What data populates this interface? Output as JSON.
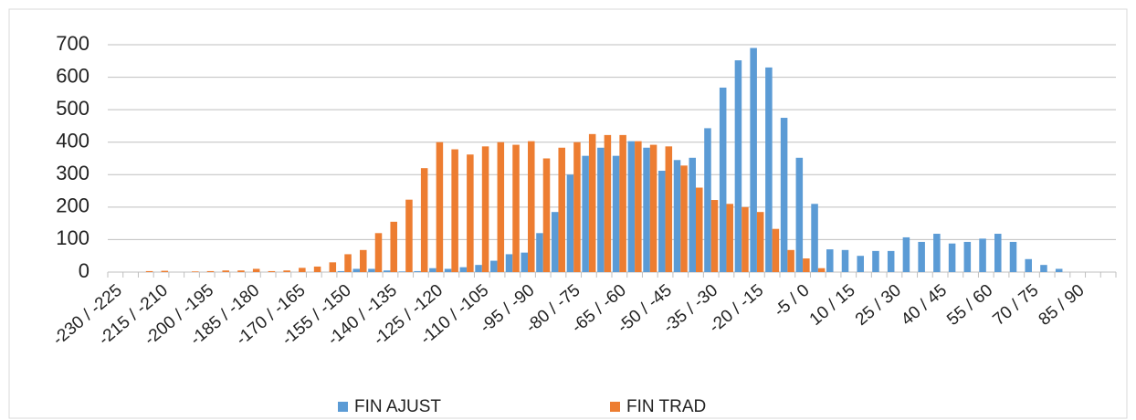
{
  "chart_data": {
    "type": "bar",
    "categories": [
      "-230 / -225",
      null,
      null,
      "-215 / -210",
      null,
      null,
      "-200 / -195",
      null,
      null,
      "-185 / -180",
      null,
      null,
      "-170 / -165",
      null,
      null,
      "-155 / -150",
      null,
      null,
      "-140 / -135",
      null,
      null,
      "-125 / -120",
      null,
      null,
      "-110 / -105",
      null,
      null,
      "-95 / -90",
      null,
      null,
      "-80 / -75",
      null,
      null,
      "-65 / -60",
      null,
      null,
      "-50 / -45",
      null,
      null,
      "-35 / -30",
      null,
      null,
      "-20 / -15",
      null,
      null,
      "-5 / 0",
      null,
      null,
      "10 / 15",
      null,
      null,
      "25 / 30",
      null,
      null,
      "40 / 45",
      null,
      null,
      "55 / 60",
      null,
      null,
      "70 / 75",
      null,
      null,
      "85 / 90",
      null,
      null
    ],
    "series": [
      {
        "name": "FIN AJUST",
        "color": "#5b9bd5",
        "values": [
          0,
          0,
          0,
          0,
          0,
          0,
          0,
          0,
          0,
          0,
          0,
          0,
          0,
          0,
          0,
          3,
          10,
          10,
          5,
          2,
          3,
          12,
          10,
          15,
          22,
          35,
          55,
          60,
          120,
          185,
          300,
          358,
          383,
          358,
          403,
          383,
          312,
          345,
          352,
          443,
          568,
          652,
          690,
          630,
          475,
          352,
          210,
          70,
          68,
          50,
          65,
          65,
          107,
          93,
          118,
          88,
          93,
          103,
          118,
          93,
          40,
          22,
          10,
          0,
          0,
          0
        ]
      },
      {
        "name": "FIN TRAD",
        "color": "#ed7d31",
        "values": [
          0,
          0,
          3,
          4,
          0,
          2,
          3,
          5,
          5,
          10,
          3,
          5,
          13,
          17,
          30,
          55,
          68,
          120,
          155,
          223,
          320,
          400,
          378,
          362,
          387,
          400,
          392,
          403,
          350,
          383,
          400,
          425,
          422,
          422,
          403,
          392,
          387,
          328,
          260,
          222,
          210,
          200,
          185,
          133,
          68,
          42,
          12,
          0,
          0,
          0,
          0,
          0,
          0,
          0,
          0,
          0,
          0,
          0,
          0,
          0,
          0,
          0,
          0,
          0,
          0,
          0
        ]
      }
    ],
    "ylim": [
      0,
      700
    ],
    "yticks": [
      0,
      100,
      200,
      300,
      400,
      500,
      600,
      700
    ],
    "grid": true,
    "legend": "bottom"
  }
}
